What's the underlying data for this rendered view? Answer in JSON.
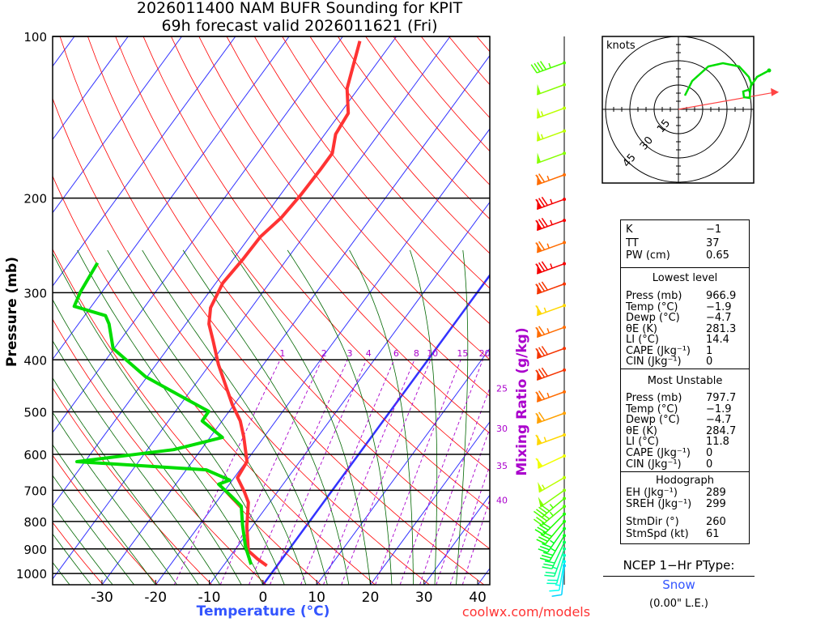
{
  "title": {
    "line1": "2026011400 NAM BUFR Sounding for KPIT",
    "line2": "69h forecast valid 2026011621 (Fri)"
  },
  "footer": {
    "source": "coolwx.com/models"
  },
  "colors": {
    "temperature": "#ff3333",
    "dewpoint": "#00dd00",
    "isotherm": "#3333ff",
    "dry_adiabat": "#ff0000",
    "moist_adiabat": "#006600",
    "mixing_ratio": "#aa00cc",
    "ptype": "#3355ff"
  },
  "chart_data": {
    "type": "line",
    "title": "2026011400 NAM BUFR Sounding for KPIT",
    "xlabel": "Temperature (°C)",
    "ylabel": "Pressure (mb)",
    "y2label": "Mixing Ratio (g/kg)",
    "xlim": [
      -40,
      42
    ],
    "ylim": [
      1050,
      100
    ],
    "x_ticks": [
      "-30",
      "-20",
      "-10",
      "0",
      "10",
      "20",
      "30",
      "40"
    ],
    "y_ticks": [
      "100",
      "200",
      "300",
      "400",
      "500",
      "600",
      "700",
      "800",
      "900",
      "1000"
    ],
    "mixing_ratio_labels": [
      "1",
      "2",
      "3",
      "4",
      "6",
      "8",
      "10",
      "15",
      "20",
      "25",
      "30",
      "35",
      "40"
    ],
    "series": [
      {
        "name": "Temperature",
        "points": [
          [
            967,
            -1.9
          ],
          [
            939,
            -4.6
          ],
          [
            907,
            -7.4
          ],
          [
            817,
            -11.0
          ],
          [
            737,
            -14.0
          ],
          [
            704,
            -16.2
          ],
          [
            663,
            -19.4
          ],
          [
            619,
            -19.8
          ],
          [
            558,
            -23.7
          ],
          [
            520,
            -26.6
          ],
          [
            485,
            -30.3
          ],
          [
            453,
            -33.5
          ],
          [
            408,
            -38.4
          ],
          [
            368,
            -42.7
          ],
          [
            343,
            -45.7
          ],
          [
            320,
            -47.6
          ],
          [
            288,
            -48.7
          ],
          [
            260,
            -48.2
          ],
          [
            236,
            -48.0
          ],
          [
            217,
            -46.7
          ],
          [
            197,
            -46.2
          ],
          [
            177,
            -46.0
          ],
          [
            165,
            -46.0
          ],
          [
            152,
            -48.0
          ],
          [
            139,
            -48.5
          ],
          [
            125,
            -52.1
          ],
          [
            102,
            -56.2
          ]
        ]
      },
      {
        "name": "Dewpoint",
        "points": [
          [
            962,
            -5.0
          ],
          [
            891,
            -8.5
          ],
          [
            812,
            -12.0
          ],
          [
            749,
            -14.8
          ],
          [
            716,
            -18.2
          ],
          [
            682,
            -22.0
          ],
          [
            670,
            -20.5
          ],
          [
            641,
            -26.3
          ],
          [
            619,
            -51.5
          ],
          [
            588,
            -35.1
          ],
          [
            558,
            -27.7
          ],
          [
            520,
            -33.7
          ],
          [
            499,
            -33.8
          ],
          [
            469,
            -40.7
          ],
          [
            430,
            -50.3
          ],
          [
            381,
            -60.2
          ],
          [
            343,
            -64.3
          ],
          [
            331,
            -66.1
          ],
          [
            318,
            -73.2
          ],
          [
            299,
            -74.0
          ],
          [
            264,
            -74.8
          ]
        ]
      }
    ],
    "winds": [
      {
        "p": 112,
        "dir": 250,
        "spd": 45
      },
      {
        "p": 123,
        "dir": 250,
        "spd": 50
      },
      {
        "p": 136,
        "dir": 250,
        "spd": 55
      },
      {
        "p": 150,
        "dir": 250,
        "spd": 55
      },
      {
        "p": 165,
        "dir": 250,
        "spd": 50
      },
      {
        "p": 181,
        "dir": 250,
        "spd": 75
      },
      {
        "p": 201,
        "dir": 250,
        "spd": 85
      },
      {
        "p": 220,
        "dir": 250,
        "spd": 85
      },
      {
        "p": 242,
        "dir": 250,
        "spd": 75
      },
      {
        "p": 265,
        "dir": 250,
        "spd": 85
      },
      {
        "p": 289,
        "dir": 250,
        "spd": 80
      },
      {
        "p": 317,
        "dir": 250,
        "spd": 65
      },
      {
        "p": 348,
        "dir": 250,
        "spd": 75
      },
      {
        "p": 381,
        "dir": 250,
        "spd": 80
      },
      {
        "p": 418,
        "dir": 250,
        "spd": 80
      },
      {
        "p": 459,
        "dir": 250,
        "spd": 75
      },
      {
        "p": 503,
        "dir": 250,
        "spd": 70
      },
      {
        "p": 552,
        "dir": 250,
        "spd": 65
      },
      {
        "p": 604,
        "dir": 245,
        "spd": 60
      },
      {
        "p": 663,
        "dir": 240,
        "spd": 55
      },
      {
        "p": 700,
        "dir": 235,
        "spd": 50
      },
      {
        "p": 725,
        "dir": 230,
        "spd": 45
      },
      {
        "p": 750,
        "dir": 230,
        "spd": 45
      },
      {
        "p": 775,
        "dir": 225,
        "spd": 40
      },
      {
        "p": 800,
        "dir": 220,
        "spd": 40
      },
      {
        "p": 825,
        "dir": 215,
        "spd": 35
      },
      {
        "p": 850,
        "dir": 210,
        "spd": 35
      },
      {
        "p": 875,
        "dir": 205,
        "spd": 30
      },
      {
        "p": 900,
        "dir": 200,
        "spd": 25
      },
      {
        "p": 925,
        "dir": 195,
        "spd": 20
      },
      {
        "p": 950,
        "dir": 190,
        "spd": 15
      },
      {
        "p": 967,
        "dir": 185,
        "spd": 10
      }
    ],
    "hodograph": {
      "units_label": "knots",
      "ring_labels": [
        "15",
        "30",
        "45"
      ],
      "uv": [
        [
          4,
          8.5
        ],
        [
          8.5,
          17.5
        ],
        [
          18.5,
          26.5
        ],
        [
          27.5,
          28.5
        ],
        [
          37.5,
          26.5
        ],
        [
          43.5,
          20
        ],
        [
          45,
          16
        ],
        [
          44.5,
          12.5
        ],
        [
          40,
          11
        ],
        [
          40.5,
          7.5
        ],
        [
          44,
          7
        ],
        [
          44.5,
          14
        ],
        [
          48.5,
          20
        ],
        [
          56,
          24
        ]
      ],
      "storm_motion": {
        "dir": 260,
        "spd": 61
      }
    }
  },
  "panel": {
    "indices": [
      {
        "label": "K",
        "value": "−1"
      },
      {
        "label": "TT",
        "value": "37"
      },
      {
        "label": "PW (cm)",
        "value": "0.65"
      }
    ],
    "lowest_title": "Lowest level",
    "lowest": [
      {
        "label": "Press (mb)",
        "value": "966.9"
      },
      {
        "label": "Temp (°C)",
        "value": "−1.9"
      },
      {
        "label": "Dewp (°C)",
        "value": "−4.7"
      },
      {
        "label": "θE (K)",
        "value": "281.3"
      },
      {
        "label": "LI (°C)",
        "value": "14.4"
      },
      {
        "label": "CAPE (Jkg⁻¹)",
        "value": "1"
      },
      {
        "label": "CIN (Jkg⁻¹)",
        "value": "0"
      }
    ],
    "unstable_title": "Most Unstable",
    "unstable": [
      {
        "label": "Press (mb)",
        "value": "797.7"
      },
      {
        "label": "Temp (°C)",
        "value": "−1.9"
      },
      {
        "label": "Dewp (°C)",
        "value": "−4.7"
      },
      {
        "label": "θE (K)",
        "value": "284.7"
      },
      {
        "label": "LI (°C)",
        "value": "11.8"
      },
      {
        "label": "CAPE (Jkg⁻¹)",
        "value": "0"
      },
      {
        "label": "CIN (Jkg⁻¹)",
        "value": "0"
      }
    ],
    "hodo_title": "Hodograph",
    "hodo": [
      {
        "label": "EH (Jkg⁻¹)",
        "value": "289"
      },
      {
        "label": "SREH (Jkg⁻¹)",
        "value": "299"
      },
      {
        "label": "StmDir (°)",
        "value": "260"
      },
      {
        "label": "StmSpd (kt)",
        "value": "61"
      }
    ]
  },
  "ptype": {
    "title": "NCEP 1−Hr PType:",
    "value": "Snow",
    "amount": "(0.00\" L.E.)"
  }
}
